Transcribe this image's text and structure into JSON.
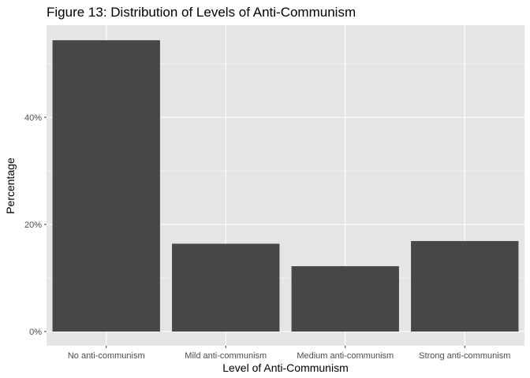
{
  "chart_data": {
    "type": "bar",
    "title": "Figure 13: Distribution of Levels of Anti-Communism",
    "xlabel": "Level of Anti-Communism",
    "ylabel": "Percentage",
    "categories": [
      "No anti-communism",
      "Mild anti-communism",
      "Medium anti-communism",
      "Strong anti-communism"
    ],
    "values": [
      54.4,
      16.4,
      12.2,
      16.9
    ],
    "ylim": [
      0,
      58
    ],
    "yticks": [
      0,
      20,
      40
    ],
    "ytick_labels": [
      "0%",
      "20%",
      "40%"
    ],
    "grid": true,
    "colors": {
      "bar": "#474747",
      "panel": "#e5e5e5",
      "grid": "#ffffff"
    }
  }
}
